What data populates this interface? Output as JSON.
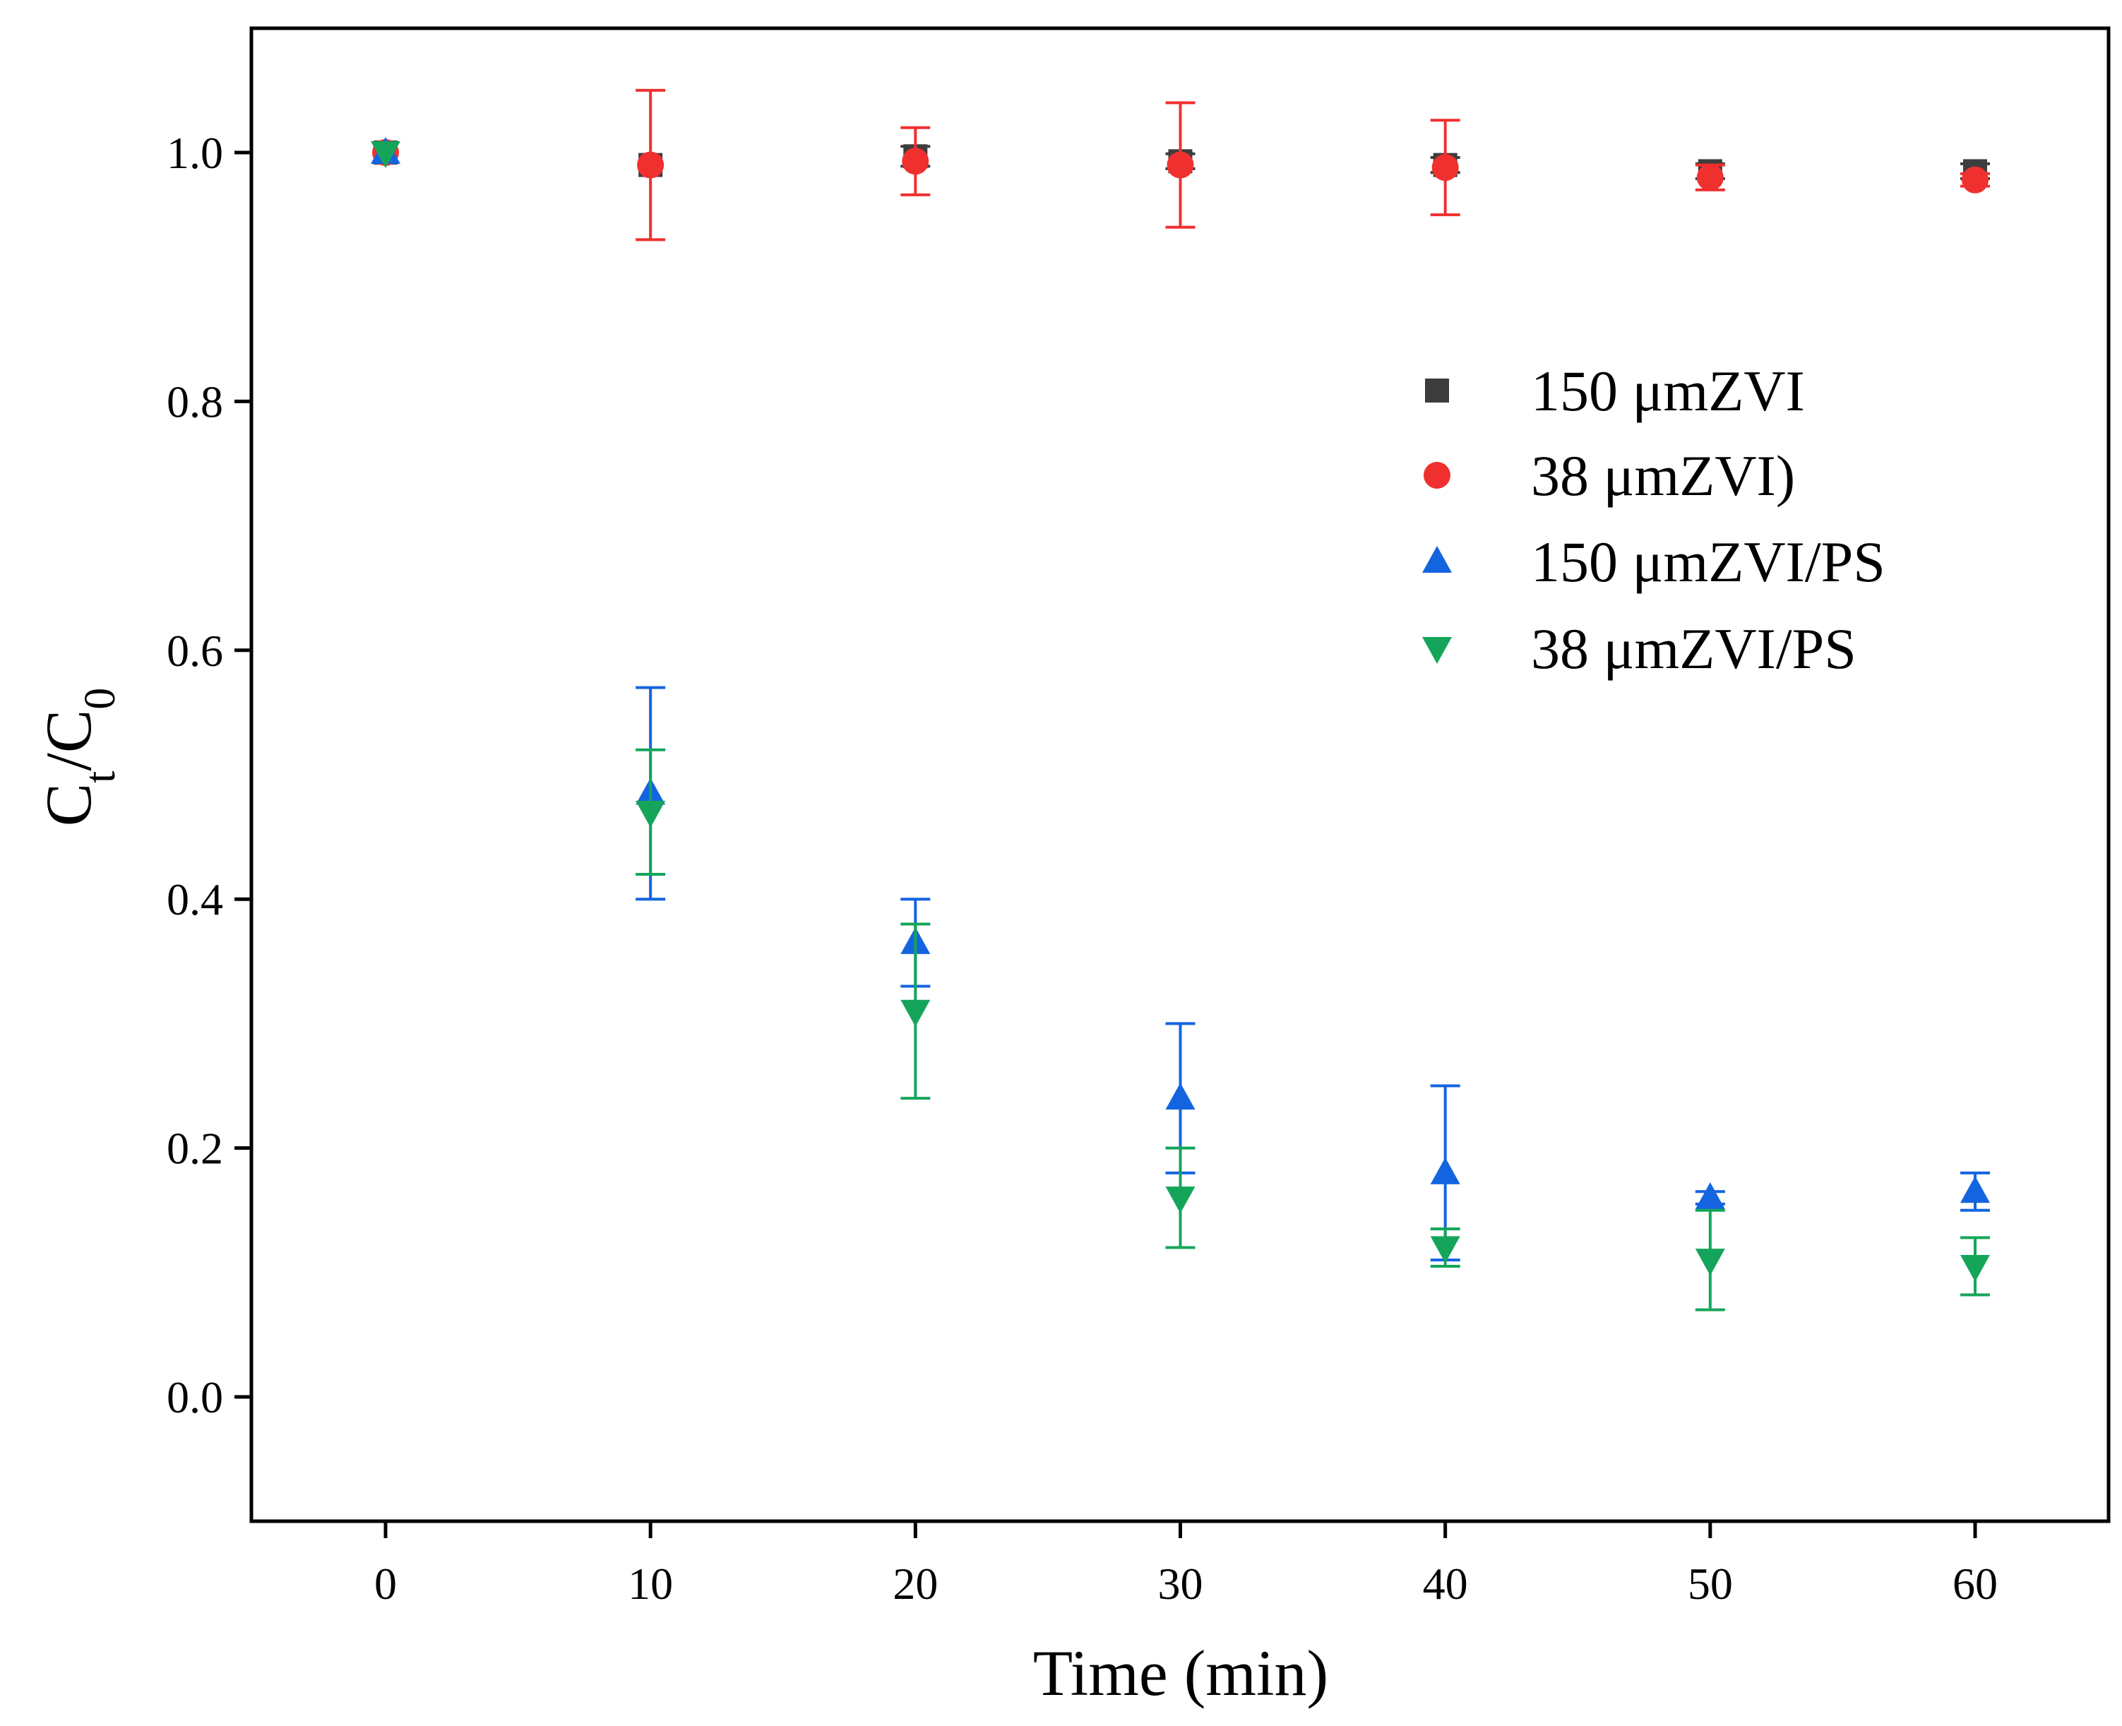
{
  "chart_data": {
    "type": "scatter",
    "xlabel": "Time (min)",
    "ylabel": {
      "base1": "C",
      "sub1": "t",
      "slash": "/",
      "base2": "C",
      "sub2": "0"
    },
    "xlim": [
      -5,
      65
    ],
    "ylim": [
      -0.1,
      1.1
    ],
    "xticks": [
      0,
      10,
      20,
      30,
      40,
      50,
      60
    ],
    "xtick_labels": [
      "0",
      "10",
      "20",
      "30",
      "40",
      "50",
      "60"
    ],
    "yticks": [
      0.0,
      0.2,
      0.4,
      0.6,
      0.8,
      1.0
    ],
    "ytick_labels": [
      "0.0",
      "0.2",
      "0.4",
      "0.6",
      "0.8",
      "1.0"
    ],
    "grid": false,
    "legend_position": "center-right",
    "series": [
      {
        "name": "150 μmZVI",
        "key": "150-umzvi",
        "marker": "square",
        "color": "#3d3d3d",
        "x": [
          0,
          10,
          20,
          30,
          40,
          50,
          60
        ],
        "y": [
          1.0,
          0.99,
          0.997,
          0.993,
          0.99,
          0.985,
          0.985
        ],
        "err": [
          0,
          0,
          0.008,
          0.006,
          0.006,
          0.006,
          0.006
        ]
      },
      {
        "name": "38 μmZVI)",
        "key": "38-umzvi",
        "marker": "circle",
        "color": "#f0302f",
        "x": [
          0,
          10,
          20,
          30,
          40,
          50,
          60
        ],
        "y": [
          1.0,
          0.99,
          0.993,
          0.99,
          0.988,
          0.98,
          0.978
        ],
        "err": [
          0,
          0.06,
          0.027,
          0.05,
          0.038,
          0.01,
          0.005
        ]
      },
      {
        "name": "150 μmZVI/PS",
        "key": "150-umzvi-ps",
        "marker": "triangle-up",
        "color": "#1464e0",
        "x": [
          0,
          10,
          20,
          30,
          40,
          50,
          60
        ],
        "y": [
          1.0,
          0.485,
          0.365,
          0.24,
          0.18,
          0.16,
          0.165
        ],
        "err": [
          0,
          0.085,
          0.035,
          0.06,
          0.07,
          0.005,
          0.015
        ]
      },
      {
        "name": "38 μmZVI/PS",
        "key": "38-umzvi-ps",
        "marker": "triangle-down",
        "color": "#14a55a",
        "x": [
          0,
          10,
          20,
          30,
          40,
          50,
          60
        ],
        "y": [
          1.0,
          0.47,
          0.31,
          0.16,
          0.12,
          0.11,
          0.105
        ],
        "err": [
          0,
          0.05,
          0.07,
          0.04,
          0.015,
          0.04,
          0.023
        ]
      }
    ]
  }
}
